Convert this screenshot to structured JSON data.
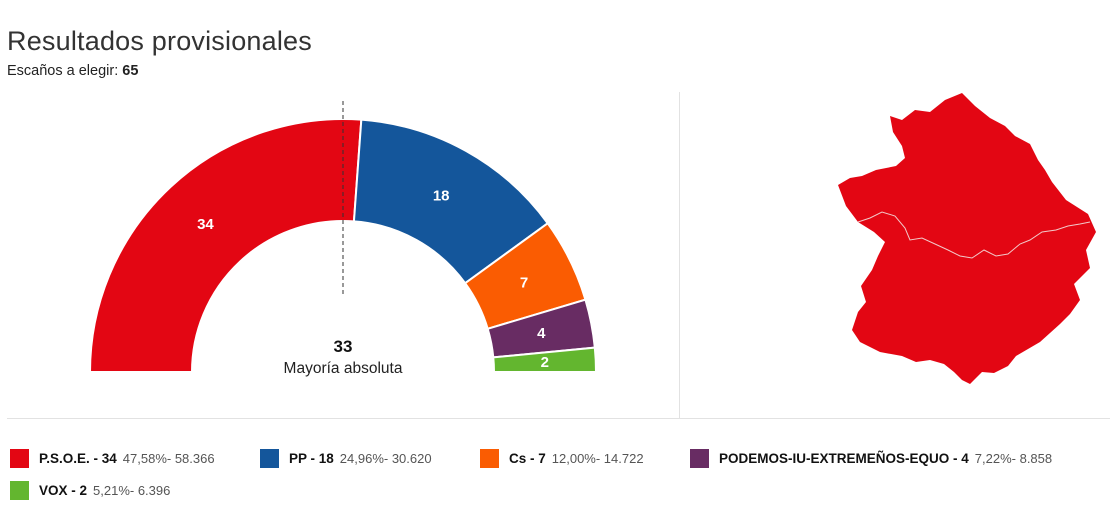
{
  "header": {
    "title": "Resultados provisionales",
    "seats_label": "Escaños a elegir:",
    "seats_total": "65"
  },
  "chart_data": {
    "type": "pie",
    "subtype": "parliament-semicircle",
    "total_seats": 65,
    "majority": {
      "value": "33",
      "label": "Mayoría absoluta"
    },
    "series": [
      {
        "name": "P.S.O.E.",
        "seats": 34,
        "percent": "47,58%",
        "votes": "58.366",
        "color": "#e30613"
      },
      {
        "name": "PP",
        "seats": 18,
        "percent": "24,96%",
        "votes": "30.620",
        "color": "#14569b"
      },
      {
        "name": "Cs",
        "seats": 7,
        "percent": "12,00%",
        "votes": "14.722",
        "color": "#fa5c02"
      },
      {
        "name": "PODEMOS-IU-EXTREMEÑOS-EQUO",
        "seats": 4,
        "percent": "7,22%",
        "votes": "8.858",
        "color": "#682c63"
      },
      {
        "name": "VOX",
        "seats": 2,
        "percent": "5,21%",
        "votes": "6.396",
        "color": "#63b62f"
      }
    ]
  },
  "map": {
    "icon": "extremadura-map-icon",
    "fill": "#e30613",
    "border": "#f2c9c9"
  }
}
